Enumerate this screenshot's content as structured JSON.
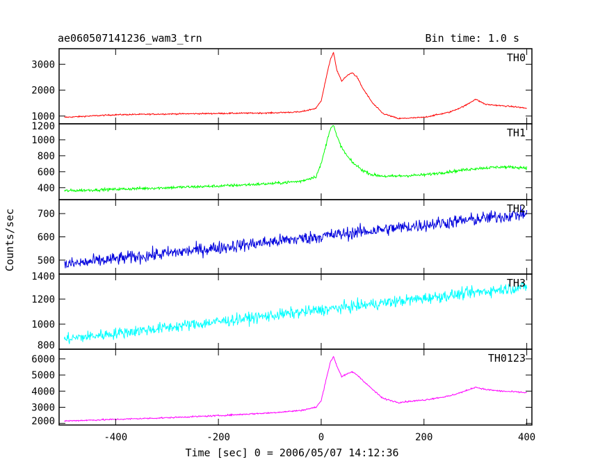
{
  "chart_data": {
    "type": "line",
    "title": "ae060507141236_wam3_trn",
    "bin_time_label": "Bin time: 1.0 s",
    "xlabel": "Time [sec] 0 = 2006/05/07 14:12:36",
    "ylabel": "Counts/sec",
    "xlim": [
      -510,
      410
    ],
    "xticks": [
      -400,
      -200,
      0,
      200,
      400
    ],
    "grid": false,
    "panels": [
      {
        "name": "TH0",
        "color": "#ff0000",
        "ylim": [
          700,
          3600
        ],
        "yticks": [
          1000,
          2000,
          3000
        ],
        "noise": 25,
        "x": [
          -500,
          -400,
          -300,
          -200,
          -100,
          -40,
          -10,
          0,
          10,
          18,
          24,
          30,
          40,
          50,
          60,
          70,
          80,
          100,
          120,
          150,
          200,
          250,
          280,
          300,
          320,
          350,
          380,
          400
        ],
        "y": [
          950,
          1050,
          1080,
          1100,
          1120,
          1160,
          1300,
          1600,
          2500,
          3200,
          3450,
          2800,
          2350,
          2550,
          2680,
          2500,
          2100,
          1500,
          1100,
          900,
          950,
          1150,
          1400,
          1650,
          1450,
          1400,
          1350,
          1300
        ]
      },
      {
        "name": "TH1",
        "color": "#00ff00",
        "ylim": [
          250,
          1200
        ],
        "yticks": [
          400,
          600,
          800,
          1000,
          1200
        ],
        "noise": 18,
        "x": [
          -500,
          -400,
          -300,
          -200,
          -100,
          -40,
          -10,
          0,
          10,
          18,
          24,
          30,
          40,
          50,
          60,
          80,
          100,
          130,
          200,
          250,
          300,
          350,
          400
        ],
        "y": [
          360,
          380,
          400,
          420,
          450,
          480,
          540,
          700,
          950,
          1150,
          1180,
          1050,
          900,
          800,
          720,
          620,
          560,
          540,
          560,
          600,
          640,
          660,
          650
        ]
      },
      {
        "name": "TH2",
        "color": "#0000dd",
        "ylim": [
          440,
          760
        ],
        "yticks": [
          500,
          600,
          700
        ],
        "noise": 28,
        "x": [
          -500,
          400
        ],
        "y": [
          480,
          700
        ]
      },
      {
        "name": "TH3",
        "color": "#00ffff",
        "ylim": [
          800,
          1400
        ],
        "yticks": [
          800,
          1000,
          1200,
          1400
        ],
        "noise": 45,
        "x": [
          -500,
          400
        ],
        "y": [
          880,
          1300
        ]
      },
      {
        "name": "TH0123",
        "color": "#ff00ff",
        "ylim": [
          1900,
          6600
        ],
        "yticks": [
          2000,
          3000,
          4000,
          5000,
          6000
        ],
        "noise": 45,
        "x": [
          -500,
          -400,
          -300,
          -200,
          -100,
          -40,
          -10,
          0,
          10,
          18,
          24,
          30,
          40,
          50,
          60,
          70,
          80,
          100,
          120,
          150,
          200,
          250,
          280,
          300,
          320,
          350,
          380,
          400
        ],
        "y": [
          2150,
          2250,
          2350,
          2480,
          2650,
          2800,
          3000,
          3400,
          4800,
          5800,
          6150,
          5600,
          4900,
          5050,
          5200,
          5000,
          4700,
          4100,
          3550,
          3300,
          3450,
          3700,
          4000,
          4250,
          4100,
          4000,
          3950,
          3900
        ]
      }
    ]
  }
}
